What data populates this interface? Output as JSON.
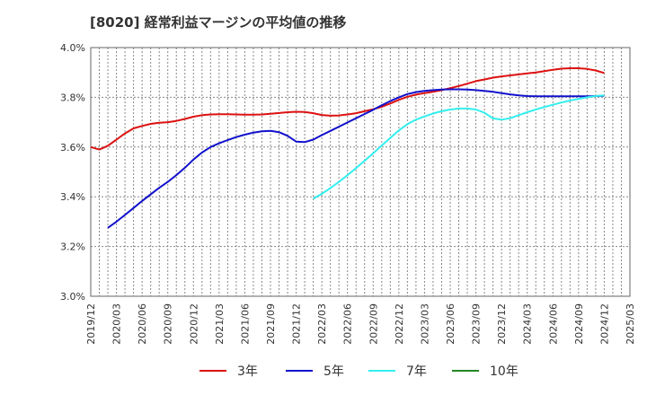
{
  "chart_data": {
    "type": "line",
    "title": "[8020]  経常利益マージンの平均値の推移",
    "xlabel": "",
    "ylabel": "",
    "ylim": [
      0.03,
      0.04
    ],
    "y_ticks": [
      {
        "value": 0.03,
        "label": "3.0%"
      },
      {
        "value": 0.032,
        "label": "3.2%"
      },
      {
        "value": 0.034,
        "label": "3.4%"
      },
      {
        "value": 0.036,
        "label": "3.6%"
      },
      {
        "value": 0.038,
        "label": "3.8%"
      },
      {
        "value": 0.04,
        "label": "4.0%"
      }
    ],
    "x_ticks": [
      "2019/12",
      "2020/03",
      "2020/06",
      "2020/09",
      "2020/12",
      "2021/03",
      "2021/06",
      "2021/09",
      "2021/12",
      "2022/03",
      "2022/06",
      "2022/09",
      "2022/12",
      "2023/03",
      "2023/06",
      "2023/09",
      "2023/12",
      "2024/03",
      "2024/06",
      "2024/09",
      "2024/12",
      "2025/03"
    ],
    "grid": true,
    "legend_position": "bottom",
    "series": [
      {
        "name": "3年",
        "color": "#dd1111",
        "points": [
          [
            "2019/12",
            3.6
          ],
          [
            "2020/01",
            3.59
          ],
          [
            "2020/02",
            3.605
          ],
          [
            "2020/03",
            3.63
          ],
          [
            "2020/04",
            3.655
          ],
          [
            "2020/05",
            3.675
          ],
          [
            "2020/06",
            3.685
          ],
          [
            "2020/07",
            3.693
          ],
          [
            "2020/08",
            3.698
          ],
          [
            "2020/09",
            3.7
          ],
          [
            "2020/10",
            3.705
          ],
          [
            "2020/11",
            3.713
          ],
          [
            "2020/12",
            3.722
          ],
          [
            "2021/01",
            3.728
          ],
          [
            "2021/02",
            3.731
          ],
          [
            "2021/03",
            3.732
          ],
          [
            "2021/04",
            3.732
          ],
          [
            "2021/05",
            3.731
          ],
          [
            "2021/06",
            3.73
          ],
          [
            "2021/07",
            3.73
          ],
          [
            "2021/08",
            3.731
          ],
          [
            "2021/09",
            3.734
          ],
          [
            "2021/10",
            3.737
          ],
          [
            "2021/11",
            3.74
          ],
          [
            "2021/12",
            3.742
          ],
          [
            "2022/01",
            3.741
          ],
          [
            "2022/02",
            3.736
          ],
          [
            "2022/03",
            3.729
          ],
          [
            "2022/04",
            3.726
          ],
          [
            "2022/05",
            3.727
          ],
          [
            "2022/06",
            3.731
          ],
          [
            "2022/07",
            3.736
          ],
          [
            "2022/08",
            3.744
          ],
          [
            "2022/09",
            3.752
          ],
          [
            "2022/10",
            3.762
          ],
          [
            "2022/11",
            3.775
          ],
          [
            "2022/12",
            3.79
          ],
          [
            "2023/01",
            3.802
          ],
          [
            "2023/02",
            3.811
          ],
          [
            "2023/03",
            3.817
          ],
          [
            "2023/04",
            3.822
          ],
          [
            "2023/05",
            3.829
          ],
          [
            "2023/06",
            3.837
          ],
          [
            "2023/07",
            3.845
          ],
          [
            "2023/08",
            3.855
          ],
          [
            "2023/09",
            3.865
          ],
          [
            "2023/10",
            3.872
          ],
          [
            "2023/11",
            3.879
          ],
          [
            "2023/12",
            3.884
          ],
          [
            "2024/01",
            3.888
          ],
          [
            "2024/02",
            3.892
          ],
          [
            "2024/03",
            3.896
          ],
          [
            "2024/04",
            3.9
          ],
          [
            "2024/05",
            3.905
          ],
          [
            "2024/06",
            3.911
          ],
          [
            "2024/07",
            3.915
          ],
          [
            "2024/08",
            3.917
          ],
          [
            "2024/09",
            3.917
          ],
          [
            "2024/10",
            3.914
          ],
          [
            "2024/11",
            3.908
          ],
          [
            "2024/12",
            3.898
          ]
        ]
      },
      {
        "name": "5年",
        "color": "#1111cc",
        "points": [
          [
            "2020/02",
            3.275
          ],
          [
            "2020/03",
            3.3
          ],
          [
            "2020/04",
            3.327
          ],
          [
            "2020/05",
            3.355
          ],
          [
            "2020/06",
            3.383
          ],
          [
            "2020/07",
            3.41
          ],
          [
            "2020/08",
            3.436
          ],
          [
            "2020/09",
            3.46
          ],
          [
            "2020/10",
            3.487
          ],
          [
            "2020/11",
            3.517
          ],
          [
            "2020/12",
            3.55
          ],
          [
            "2021/01",
            3.578
          ],
          [
            "2021/02",
            3.6
          ],
          [
            "2021/03",
            3.615
          ],
          [
            "2021/04",
            3.628
          ],
          [
            "2021/05",
            3.64
          ],
          [
            "2021/06",
            3.65
          ],
          [
            "2021/07",
            3.658
          ],
          [
            "2021/08",
            3.663
          ],
          [
            "2021/09",
            3.665
          ],
          [
            "2021/10",
            3.66
          ],
          [
            "2021/11",
            3.645
          ],
          [
            "2021/12",
            3.622
          ],
          [
            "2022/01",
            3.62
          ],
          [
            "2022/02",
            3.63
          ],
          [
            "2022/03",
            3.648
          ],
          [
            "2022/04",
            3.665
          ],
          [
            "2022/05",
            3.682
          ],
          [
            "2022/06",
            3.699
          ],
          [
            "2022/07",
            3.716
          ],
          [
            "2022/08",
            3.733
          ],
          [
            "2022/09",
            3.75
          ],
          [
            "2022/10",
            3.768
          ],
          [
            "2022/11",
            3.785
          ],
          [
            "2022/12",
            3.8
          ],
          [
            "2023/01",
            3.813
          ],
          [
            "2023/02",
            3.821
          ],
          [
            "2023/03",
            3.826
          ],
          [
            "2023/04",
            3.829
          ],
          [
            "2023/05",
            3.831
          ],
          [
            "2023/06",
            3.832
          ],
          [
            "2023/07",
            3.832
          ],
          [
            "2023/08",
            3.831
          ],
          [
            "2023/09",
            3.829
          ],
          [
            "2023/10",
            3.826
          ],
          [
            "2023/11",
            3.822
          ],
          [
            "2023/12",
            3.817
          ],
          [
            "2024/01",
            3.812
          ],
          [
            "2024/02",
            3.808
          ],
          [
            "2024/03",
            3.805
          ],
          [
            "2024/04",
            3.804
          ],
          [
            "2024/05",
            3.804
          ],
          [
            "2024/06",
            3.804
          ],
          [
            "2024/07",
            3.804
          ],
          [
            "2024/08",
            3.804
          ],
          [
            "2024/09",
            3.804
          ],
          [
            "2024/10",
            3.804
          ],
          [
            "2024/11",
            3.805
          ],
          [
            "2024/12",
            3.806
          ]
        ]
      },
      {
        "name": "7年",
        "color": "#33eeee",
        "points": [
          [
            "2022/02",
            3.392
          ],
          [
            "2022/03",
            3.412
          ],
          [
            "2022/04",
            3.435
          ],
          [
            "2022/05",
            3.46
          ],
          [
            "2022/06",
            3.487
          ],
          [
            "2022/07",
            3.515
          ],
          [
            "2022/08",
            3.545
          ],
          [
            "2022/09",
            3.575
          ],
          [
            "2022/10",
            3.606
          ],
          [
            "2022/11",
            3.637
          ],
          [
            "2022/12",
            3.667
          ],
          [
            "2023/01",
            3.692
          ],
          [
            "2023/02",
            3.71
          ],
          [
            "2023/03",
            3.723
          ],
          [
            "2023/04",
            3.735
          ],
          [
            "2023/05",
            3.744
          ],
          [
            "2023/06",
            3.751
          ],
          [
            "2023/07",
            3.755
          ],
          [
            "2023/08",
            3.755
          ],
          [
            "2023/09",
            3.751
          ],
          [
            "2023/10",
            3.738
          ],
          [
            "2023/11",
            3.715
          ],
          [
            "2023/12",
            3.71
          ],
          [
            "2024/01",
            3.716
          ],
          [
            "2024/02",
            3.728
          ],
          [
            "2024/03",
            3.74
          ],
          [
            "2024/04",
            3.751
          ],
          [
            "2024/05",
            3.761
          ],
          [
            "2024/06",
            3.77
          ],
          [
            "2024/07",
            3.779
          ],
          [
            "2024/08",
            3.787
          ],
          [
            "2024/09",
            3.794
          ],
          [
            "2024/10",
            3.8
          ],
          [
            "2024/11",
            3.805
          ],
          [
            "2024/12",
            3.808
          ]
        ]
      },
      {
        "name": "10年",
        "color": "#228822",
        "points": []
      }
    ]
  }
}
